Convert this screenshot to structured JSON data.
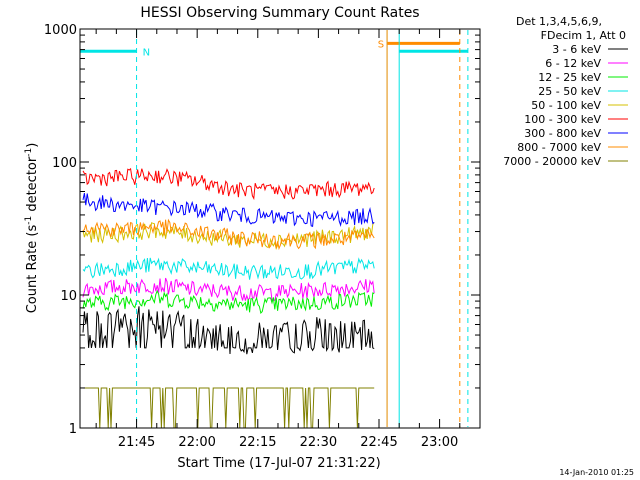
{
  "chart_data": {
    "type": "line",
    "title": "HESSI Observing Summary Count Rates",
    "xlabel": "Start Time (17-Jul-07 21:31:22)",
    "ylabel": "Count Rate (s-1 detector-1)",
    "ylabel_parts": {
      "a": "Count Rate (s",
      "b": "-1",
      "c": " detector",
      "d": "-1",
      "e": ")"
    },
    "y_scale": "log",
    "ylim": [
      1,
      1000
    ],
    "xlim": [
      "21:31",
      "23:10"
    ],
    "x_ticks": [
      "21:45",
      "22:00",
      "22:15",
      "22:30",
      "22:45",
      "23:00"
    ],
    "y_ticks": [
      "1",
      "10",
      "100",
      "1000"
    ],
    "legend_header": [
      "Det 1,3,4,5,6,9,",
      "FDecim 1, Att 0"
    ],
    "legend_placement": "right",
    "timestamp": "14-Jan-2010 01:25",
    "flags": [
      {
        "label": "N",
        "level": 680,
        "start": "21:31",
        "end": "21:45",
        "color": "#00e5e5"
      },
      {
        "label": "",
        "level": 680,
        "start": "22:50",
        "end": "23:07",
        "color": "#00e5e5"
      },
      {
        "label": "S",
        "level": 780,
        "start": "22:47",
        "end": "23:05",
        "color": "#ff8c00"
      }
    ],
    "vlines": [
      {
        "time": "21:45",
        "style": "dashed",
        "color": "#00e5e5"
      },
      {
        "time": "22:47",
        "style": "solid",
        "color": "#00e5e5"
      },
      {
        "time": "22:50",
        "style": "solid",
        "color": "#00e5e5"
      },
      {
        "time": "23:07",
        "style": "dashed",
        "color": "#00e5e5"
      },
      {
        "time": "22:47",
        "style": "solid",
        "color": "#ff8c00"
      },
      {
        "time": "23:05",
        "style": "dashed",
        "color": "#ff8c00"
      }
    ],
    "times": [
      "21:31",
      "21:40",
      "21:50",
      "22:00",
      "22:10",
      "22:20",
      "22:30",
      "22:40",
      "22:44"
    ],
    "series": [
      {
        "name": "3 - 6 keV",
        "color": "#000000",
        "values": [
          6.0,
          6.5,
          7.0,
          5.5,
          5.0,
          5.0,
          5.5,
          5.0,
          5.5
        ]
      },
      {
        "name": "6 - 12 keV",
        "color": "#ff00ff",
        "values": [
          11,
          11.5,
          12,
          11,
          10.5,
          10.5,
          11,
          11.5,
          12
        ]
      },
      {
        "name": "12 - 25 keV",
        "color": "#00ee00",
        "values": [
          8.5,
          9,
          9.5,
          9,
          8.5,
          8.5,
          8.8,
          9.2,
          9.5
        ]
      },
      {
        "name": "25 - 50 keV",
        "color": "#00e5e5",
        "values": [
          15,
          16,
          17,
          16,
          15,
          15,
          15.5,
          16.5,
          17
        ]
      },
      {
        "name": "50 - 100 keV",
        "color": "#d4c000",
        "values": [
          28,
          29,
          31,
          28,
          26,
          26,
          27,
          29,
          31
        ]
      },
      {
        "name": "100 - 300 keV",
        "color": "#ff0000",
        "values": [
          75,
          77,
          80,
          72,
          62,
          60,
          62,
          64,
          66
        ]
      },
      {
        "name": "300 - 800 keV",
        "color": "#0000ff",
        "values": [
          52,
          48,
          46,
          44,
          40,
          38,
          38,
          39,
          40
        ]
      },
      {
        "name": "800 - 7000 keV",
        "color": "#ff8c00",
        "values": [
          34,
          31,
          33,
          30,
          27,
          26,
          26,
          27,
          28
        ]
      },
      {
        "name": "7000 - 20000 keV",
        "color": "#808000",
        "values": [
          2,
          2,
          2,
          2,
          2,
          2,
          2,
          2,
          2
        ]
      }
    ]
  }
}
